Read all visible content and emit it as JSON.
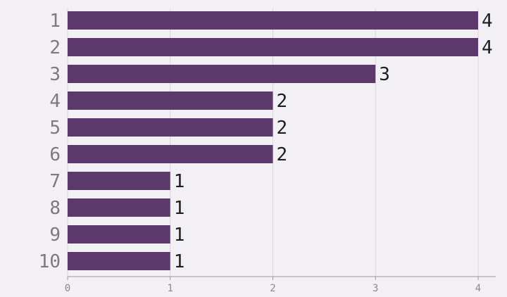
{
  "chart_data": {
    "type": "bar",
    "orientation": "horizontal",
    "categories": [
      "1",
      "2",
      "3",
      "4",
      "5",
      "6",
      "7",
      "8",
      "9",
      "10"
    ],
    "values": [
      4,
      4,
      3,
      2,
      2,
      2,
      1,
      1,
      1,
      1
    ],
    "data_labels": [
      "4",
      "4",
      "3",
      "2",
      "2",
      "2",
      "1",
      "1",
      "1",
      "1"
    ],
    "x_ticks": [
      "0",
      "1",
      "2",
      "3",
      "4"
    ],
    "xlim": [
      0,
      4
    ],
    "grid": true,
    "bar_color": "#5b3a6b",
    "background_color": "#f2f0f4"
  }
}
